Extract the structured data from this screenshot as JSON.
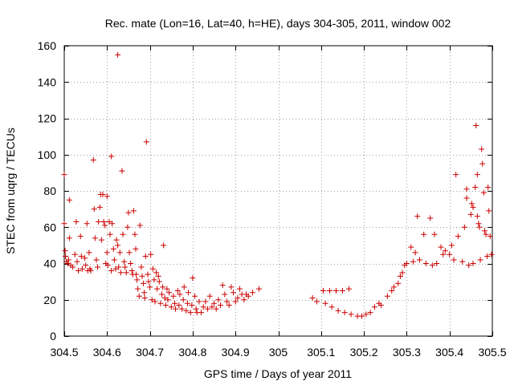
{
  "chart_data": {
    "type": "scatter",
    "title": "Rec. mate (Lon=16, Lat=40, h=HE), days 304-305, 2011, window 002",
    "xlabel": "GPS time / Days of year 2011",
    "ylabel": "STEC from uqrg / TECUs",
    "xlim": [
      304.5,
      305.5
    ],
    "ylim": [
      0,
      160
    ],
    "xticks": [
      304.5,
      304.6,
      304.7,
      304.8,
      304.9,
      305,
      305.1,
      305.2,
      305.3,
      305.4,
      305.5
    ],
    "xtick_labels": [
      "304.5",
      "304.6",
      "304.7",
      "304.8",
      "304.9",
      "305",
      "305.1",
      "305.2",
      "305.3",
      "305.4",
      "305.5"
    ],
    "yticks": [
      0,
      20,
      40,
      60,
      80,
      100,
      120,
      140,
      160
    ],
    "ytick_labels": [
      "0",
      "20",
      "40",
      "60",
      "80",
      "100",
      "120",
      "140",
      "160"
    ],
    "grid": true,
    "marker": "plus",
    "color": "#cc0000",
    "series": [
      {
        "points": [
          [
            304.5,
            89
          ],
          [
            304.5,
            62
          ],
          [
            304.502,
            47
          ],
          [
            304.503,
            44
          ],
          [
            304.505,
            41
          ],
          [
            304.508,
            40
          ],
          [
            304.51,
            42
          ],
          [
            304.512,
            75
          ],
          [
            304.512,
            54
          ],
          [
            304.515,
            39
          ],
          [
            304.52,
            38
          ],
          [
            304.525,
            45
          ],
          [
            304.528,
            63
          ],
          [
            304.53,
            41
          ],
          [
            304.533,
            36
          ],
          [
            304.538,
            55
          ],
          [
            304.54,
            44
          ],
          [
            304.542,
            37
          ],
          [
            304.548,
            43
          ],
          [
            304.55,
            39
          ],
          [
            304.553,
            62
          ],
          [
            304.555,
            36
          ],
          [
            304.558,
            46
          ],
          [
            304.56,
            37
          ],
          [
            304.562,
            36
          ],
          [
            304.568,
            97
          ],
          [
            304.57,
            70
          ],
          [
            304.572,
            54
          ],
          [
            304.575,
            42
          ],
          [
            304.578,
            38
          ],
          [
            304.58,
            63
          ],
          [
            304.583,
            71
          ],
          [
            304.585,
            78
          ],
          [
            304.587,
            53
          ],
          [
            304.59,
            78
          ],
          [
            304.592,
            63
          ],
          [
            304.595,
            61
          ],
          [
            304.597,
            40
          ],
          [
            304.6,
            77
          ],
          [
            304.6,
            46
          ],
          [
            304.602,
            39
          ],
          [
            304.605,
            63
          ],
          [
            304.607,
            56
          ],
          [
            304.61,
            99
          ],
          [
            304.61,
            36
          ],
          [
            304.612,
            62
          ],
          [
            304.615,
            48
          ],
          [
            304.617,
            42
          ],
          [
            304.62,
            37
          ],
          [
            304.622,
            53
          ],
          [
            304.625,
            155
          ],
          [
            304.625,
            50
          ],
          [
            304.627,
            38
          ],
          [
            304.63,
            46
          ],
          [
            304.632,
            35
          ],
          [
            304.635,
            91
          ],
          [
            304.637,
            56
          ],
          [
            304.64,
            41
          ],
          [
            304.642,
            38
          ],
          [
            304.645,
            35
          ],
          [
            304.648,
            60
          ],
          [
            304.65,
            68
          ],
          [
            304.652,
            46
          ],
          [
            304.655,
            40
          ],
          [
            304.658,
            36
          ],
          [
            304.66,
            34
          ],
          [
            304.662,
            69
          ],
          [
            304.665,
            56
          ],
          [
            304.667,
            48
          ],
          [
            304.668,
            34
          ],
          [
            304.67,
            31
          ],
          [
            304.672,
            26
          ],
          [
            304.675,
            22
          ],
          [
            304.677,
            61
          ],
          [
            304.68,
            38
          ],
          [
            304.682,
            33
          ],
          [
            304.685,
            29
          ],
          [
            304.687,
            24
          ],
          [
            304.688,
            21
          ],
          [
            304.69,
            44
          ],
          [
            304.692,
            107
          ],
          [
            304.695,
            34
          ],
          [
            304.697,
            30
          ],
          [
            304.7,
            27
          ],
          [
            304.702,
            45
          ],
          [
            304.705,
            20
          ],
          [
            304.707,
            37
          ],
          [
            304.71,
            31
          ],
          [
            304.712,
            19
          ],
          [
            304.715,
            35
          ],
          [
            304.717,
            26
          ],
          [
            304.72,
            33
          ],
          [
            304.722,
            30
          ],
          [
            304.725,
            18
          ],
          [
            304.728,
            23
          ],
          [
            304.73,
            27
          ],
          [
            304.732,
            50
          ],
          [
            304.735,
            21
          ],
          [
            304.737,
            17
          ],
          [
            304.74,
            26
          ],
          [
            304.742,
            20
          ],
          [
            304.745,
            24
          ],
          [
            304.75,
            16
          ],
          [
            304.755,
            22
          ],
          [
            304.758,
            18
          ],
          [
            304.76,
            15
          ],
          [
            304.765,
            25
          ],
          [
            304.768,
            17
          ],
          [
            304.77,
            23
          ],
          [
            304.775,
            15
          ],
          [
            304.778,
            20
          ],
          [
            304.78,
            27
          ],
          [
            304.785,
            14
          ],
          [
            304.788,
            18
          ],
          [
            304.79,
            24
          ],
          [
            304.795,
            13
          ],
          [
            304.798,
            17
          ],
          [
            304.8,
            32
          ],
          [
            304.805,
            22
          ],
          [
            304.808,
            15
          ],
          [
            304.81,
            13
          ],
          [
            304.815,
            19
          ],
          [
            304.82,
            13
          ],
          [
            304.825,
            16
          ],
          [
            304.83,
            19
          ],
          [
            304.835,
            15
          ],
          [
            304.84,
            22
          ],
          [
            304.845,
            16
          ],
          [
            304.85,
            18
          ],
          [
            304.855,
            15
          ],
          [
            304.86,
            20
          ],
          [
            304.865,
            17
          ],
          [
            304.87,
            28
          ],
          [
            304.875,
            23
          ],
          [
            304.88,
            19
          ],
          [
            304.885,
            17
          ],
          [
            304.89,
            27
          ],
          [
            304.895,
            24
          ],
          [
            304.9,
            19
          ],
          [
            304.905,
            21
          ],
          [
            304.91,
            26
          ],
          [
            304.915,
            23
          ],
          [
            304.92,
            20
          ],
          [
            304.925,
            23
          ],
          [
            304.93,
            22
          ],
          [
            304.94,
            24
          ],
          [
            304.955,
            26
          ],
          [
            305.08,
            21
          ],
          [
            305.09,
            19
          ],
          [
            305.105,
            25
          ],
          [
            305.11,
            18
          ],
          [
            305.12,
            25
          ],
          [
            305.125,
            16
          ],
          [
            305.135,
            25
          ],
          [
            305.14,
            14
          ],
          [
            305.15,
            25
          ],
          [
            305.155,
            13
          ],
          [
            305.165,
            26
          ],
          [
            305.17,
            12
          ],
          [
            305.185,
            11
          ],
          [
            305.195,
            11
          ],
          [
            305.205,
            12
          ],
          [
            305.215,
            13
          ],
          [
            305.225,
            16
          ],
          [
            305.235,
            18
          ],
          [
            305.24,
            17
          ],
          [
            305.255,
            22
          ],
          [
            305.265,
            25
          ],
          [
            305.27,
            27
          ],
          [
            305.28,
            29
          ],
          [
            305.285,
            33
          ],
          [
            305.29,
            35
          ],
          [
            305.295,
            39
          ],
          [
            305.3,
            40
          ],
          [
            305.31,
            49
          ],
          [
            305.315,
            41
          ],
          [
            305.32,
            46
          ],
          [
            305.325,
            66
          ],
          [
            305.33,
            42
          ],
          [
            305.34,
            56
          ],
          [
            305.345,
            40
          ],
          [
            305.355,
            65
          ],
          [
            305.36,
            39
          ],
          [
            305.365,
            56
          ],
          [
            305.37,
            40
          ],
          [
            305.38,
            49
          ],
          [
            305.385,
            45
          ],
          [
            305.39,
            47
          ],
          [
            305.4,
            45
          ],
          [
            305.405,
            50
          ],
          [
            305.41,
            42
          ],
          [
            305.415,
            89
          ],
          [
            305.42,
            55
          ],
          [
            305.43,
            41
          ],
          [
            305.435,
            60
          ],
          [
            305.44,
            81
          ],
          [
            305.44,
            76
          ],
          [
            305.445,
            39
          ],
          [
            305.45,
            67
          ],
          [
            305.452,
            73
          ],
          [
            305.455,
            71
          ],
          [
            305.455,
            40
          ],
          [
            305.46,
            82
          ],
          [
            305.462,
            116
          ],
          [
            305.465,
            89
          ],
          [
            305.465,
            66
          ],
          [
            305.468,
            62
          ],
          [
            305.47,
            60
          ],
          [
            305.472,
            42
          ],
          [
            305.475,
            103
          ],
          [
            305.477,
            95
          ],
          [
            305.48,
            79
          ],
          [
            305.482,
            58
          ],
          [
            305.485,
            56
          ],
          [
            305.488,
            44
          ],
          [
            305.49,
            82
          ],
          [
            305.492,
            69
          ],
          [
            305.495,
            55
          ],
          [
            305.498,
            45
          ]
        ]
      }
    ]
  }
}
